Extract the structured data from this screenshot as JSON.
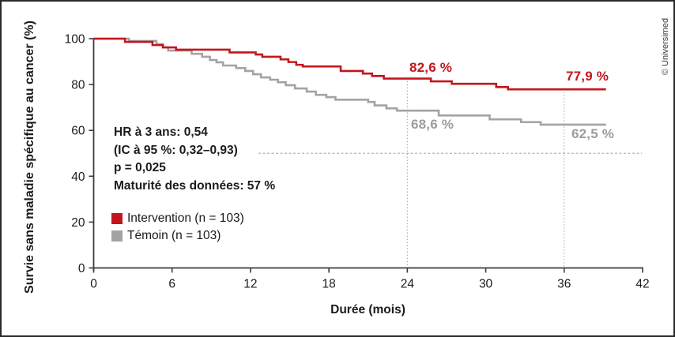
{
  "figure": {
    "copyright": "© Universimed",
    "stats": {
      "line1": "HR à 3 ans: 0,54",
      "line2": "(IC à 95 %: 0,32–0,93)",
      "line3": "p = 0,025",
      "line4": "Maturité des données: 57 %"
    },
    "annotations": {
      "intervention_24": "82,6 %",
      "intervention_36": "77,9 %",
      "temoin_24": "68,6 %",
      "temoin_36": "62,5 %"
    },
    "legend": [
      {
        "label": "Intervention (n = 103)",
        "color": "#c3161c"
      },
      {
        "label": "Témoin (n = 103)",
        "color": "#a3a3a3"
      }
    ]
  },
  "chart_data": {
    "type": "line",
    "subtype": "kaplan-meier-step",
    "title": "",
    "xlabel": "Durée (mois)",
    "ylabel": "Survie sans maladie spécifique au cancer (%)",
    "xlim": [
      0,
      42
    ],
    "ylim": [
      0,
      100
    ],
    "x_ticks": [
      0,
      6,
      12,
      18,
      24,
      30,
      36,
      42
    ],
    "y_ticks": [
      0,
      20,
      40,
      60,
      80,
      100
    ],
    "grid": false,
    "legend_position": "inside-left",
    "reference_lines": {
      "horizontal_dashed_y": 50,
      "vertical_dotted_x": [
        24,
        36
      ]
    },
    "series": [
      {
        "name": "Intervention (n = 103)",
        "color": "#c3161c",
        "end_x": 39.2,
        "steps": [
          [
            0,
            100
          ],
          [
            2.4,
            98.6
          ],
          [
            4.5,
            97.2
          ],
          [
            5.3,
            96.2
          ],
          [
            6.3,
            95.2
          ],
          [
            10.4,
            94.0
          ],
          [
            12.4,
            93.1
          ],
          [
            12.9,
            92.1
          ],
          [
            14.3,
            91.0
          ],
          [
            14.9,
            89.8
          ],
          [
            15.5,
            88.6
          ],
          [
            16.0,
            87.9
          ],
          [
            18.9,
            85.9
          ],
          [
            20.6,
            84.8
          ],
          [
            21.3,
            83.7
          ],
          [
            22.2,
            82.6
          ],
          [
            25.8,
            81.4
          ],
          [
            27.4,
            80.3
          ],
          [
            30.8,
            78.9
          ],
          [
            31.7,
            77.9
          ]
        ]
      },
      {
        "name": "Témoin (n = 103)",
        "color": "#a3a3a3",
        "end_x": 39.2,
        "steps": [
          [
            0,
            100
          ],
          [
            2.7,
            99.0
          ],
          [
            4.8,
            97.6
          ],
          [
            5.3,
            96.2
          ],
          [
            5.7,
            94.8
          ],
          [
            7.5,
            93.4
          ],
          [
            8.3,
            92.1
          ],
          [
            8.9,
            90.7
          ],
          [
            9.4,
            89.7
          ],
          [
            9.9,
            88.3
          ],
          [
            10.9,
            87.2
          ],
          [
            11.6,
            85.9
          ],
          [
            12.2,
            84.5
          ],
          [
            12.8,
            83.1
          ],
          [
            13.5,
            82.1
          ],
          [
            14.1,
            81.0
          ],
          [
            14.7,
            79.7
          ],
          [
            15.4,
            78.3
          ],
          [
            16.3,
            76.9
          ],
          [
            17.0,
            75.5
          ],
          [
            17.8,
            74.5
          ],
          [
            18.5,
            73.4
          ],
          [
            21.0,
            72.4
          ],
          [
            21.5,
            70.9
          ],
          [
            22.4,
            69.6
          ],
          [
            23.2,
            68.6
          ],
          [
            26.4,
            66.5
          ],
          [
            30.3,
            64.8
          ],
          [
            32.7,
            63.6
          ],
          [
            34.2,
            62.5
          ]
        ]
      }
    ],
    "labeled_points": [
      {
        "series": "Intervention",
        "x": 24,
        "value": 82.6
      },
      {
        "series": "Intervention",
        "x": 36,
        "value": 77.9
      },
      {
        "series": "Témoin",
        "x": 24,
        "value": 68.6
      },
      {
        "series": "Témoin",
        "x": 36,
        "value": 62.5
      }
    ],
    "stats_box": {
      "hr": "HR à 3 ans: 0,54",
      "ci": "(IC à 95 %: 0,32–0,93)",
      "p": "p = 0,025",
      "maturity": "Maturité des données: 57 %"
    }
  }
}
